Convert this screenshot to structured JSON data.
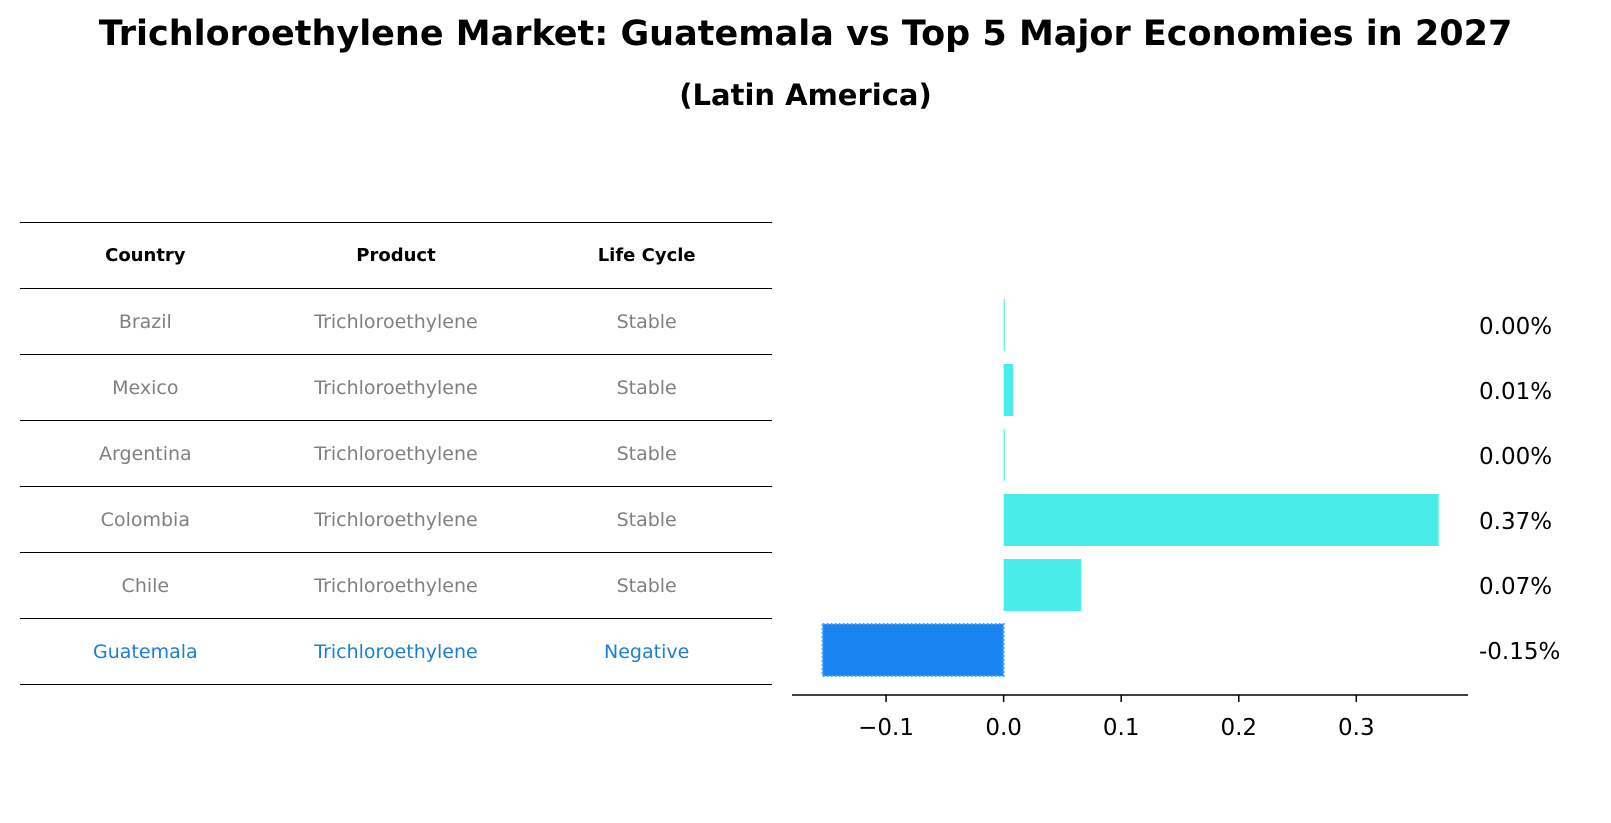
{
  "chart_data": {
    "type": "bar",
    "orientation": "horizontal",
    "title": "Trichloroethylene Market: Guatemala vs Top 5 Major Economies in 2027",
    "subtitle": "(Latin America)",
    "table": {
      "headers": [
        "Country",
        "Product",
        "Life Cycle"
      ],
      "rows": [
        [
          "Brazil",
          "Trichloroethylene",
          "Stable"
        ],
        [
          "Mexico",
          "Trichloroethylene",
          "Stable"
        ],
        [
          "Argentina",
          "Trichloroethylene",
          "Stable"
        ],
        [
          "Colombia",
          "Trichloroethylene",
          "Stable"
        ],
        [
          "Chile",
          "Trichloroethylene",
          "Stable"
        ],
        [
          "Guatemala",
          "Trichloroethylene",
          "Negative"
        ]
      ],
      "highlight_row": 5
    },
    "categories": [
      "Brazil",
      "Mexico",
      "Argentina",
      "Colombia",
      "Chile",
      "Guatemala"
    ],
    "values": [
      0.001,
      0.008,
      0.001,
      0.37,
      0.066,
      -0.154
    ],
    "value_labels": [
      "0.00%",
      "0.01%",
      "0.00%",
      "0.37%",
      "0.07%",
      "-0.15%"
    ],
    "xlim": [
      -0.18,
      0.395
    ],
    "xticks": [
      -0.1,
      0.0,
      0.1,
      0.2,
      0.3
    ],
    "xtick_labels": [
      "−0.1",
      "0.0",
      "0.1",
      "0.2",
      "0.3"
    ],
    "colors": {
      "default": "#48EDEA",
      "highlight": "#1A84F2",
      "highlight_dots": "#4aa3ff"
    },
    "xlabel": "",
    "ylabel": ""
  }
}
